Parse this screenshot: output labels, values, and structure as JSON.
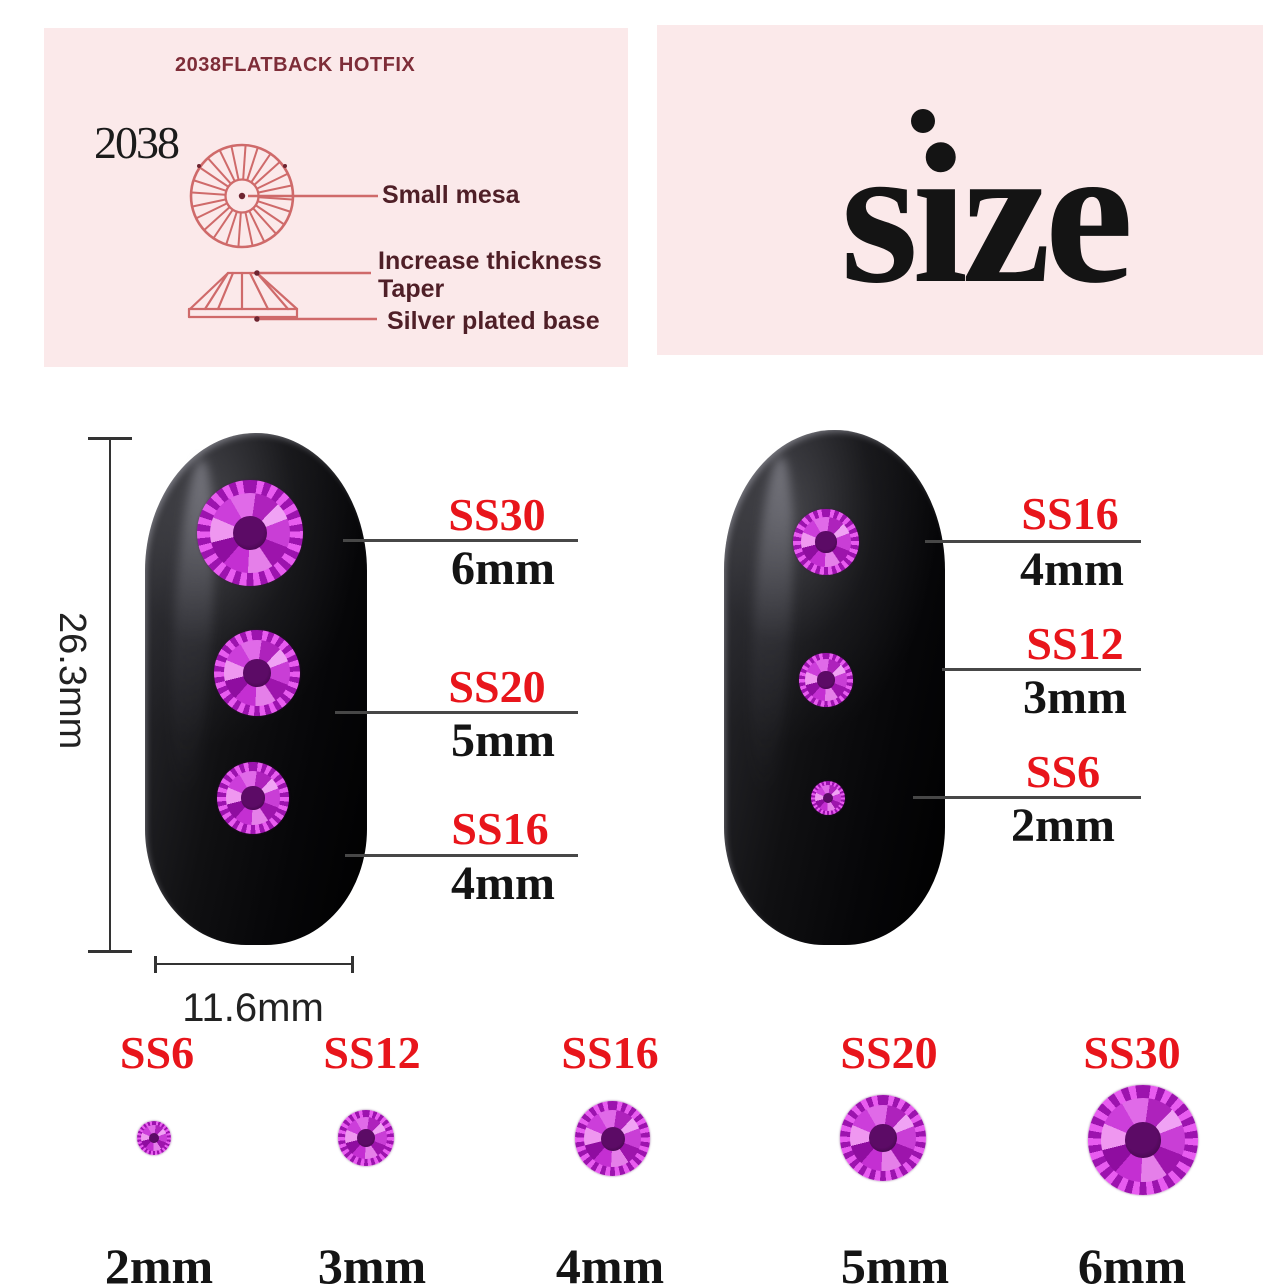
{
  "spec_panel": {
    "title": "2038FLATBACK HOTFIX",
    "model": "2038",
    "labels": {
      "top_view": "Small mesa",
      "thickness": "Increase thickness",
      "taper": "Taper",
      "base": "Silver plated base"
    }
  },
  "size_panel": {
    "heading": "size"
  },
  "dimensions": {
    "nail_length": "26.3mm",
    "nail_width": "11.6mm"
  },
  "left_nail_callouts": [
    {
      "size_code": "SS30",
      "diameter": "6mm"
    },
    {
      "size_code": "SS20",
      "diameter": "5mm"
    },
    {
      "size_code": "SS16",
      "diameter": "4mm"
    }
  ],
  "right_nail_callouts": [
    {
      "size_code": "SS16",
      "diameter": "4mm"
    },
    {
      "size_code": "SS12",
      "diameter": "3mm"
    },
    {
      "size_code": "SS6",
      "diameter": "2mm"
    }
  ],
  "size_chart": [
    {
      "size_code": "SS6",
      "diameter": "2mm"
    },
    {
      "size_code": "SS12",
      "diameter": "3mm"
    },
    {
      "size_code": "SS16",
      "diameter": "4mm"
    },
    {
      "size_code": "SS20",
      "diameter": "5mm"
    },
    {
      "size_code": "SS30",
      "diameter": "6mm"
    }
  ],
  "colors": {
    "accent_red": "#E8151B",
    "panel_pink": "#FBE9EA",
    "diagram_salmon": "#CF6A6A",
    "diagram_maroon": "#7E2D38",
    "stone_magenta": "#C832D2",
    "nail_black": "#0B0B0D"
  }
}
